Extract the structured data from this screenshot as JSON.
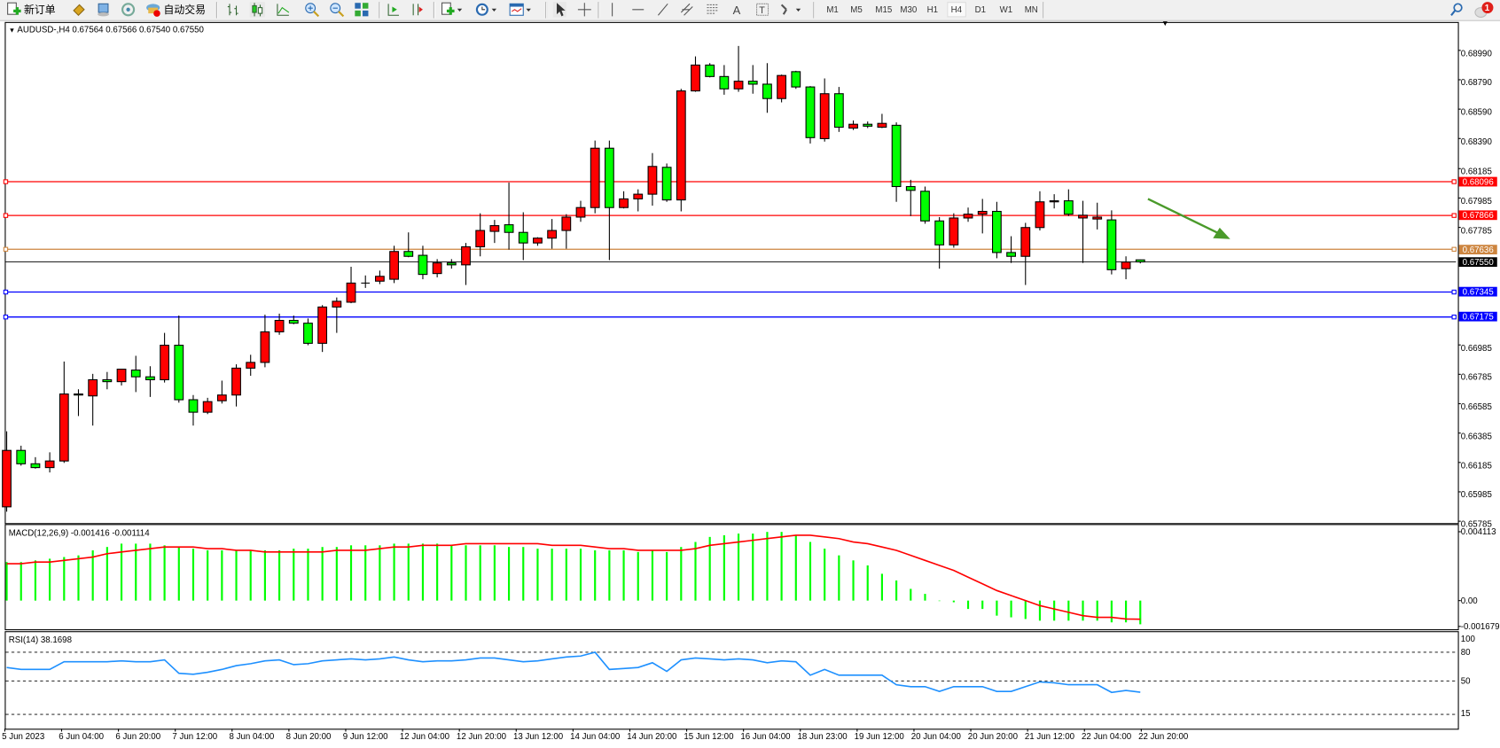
{
  "toolbar": {
    "new_order_label": "新订单",
    "auto_trading_label": "自动交易",
    "timeframes": [
      "M1",
      "M5",
      "M15",
      "M30",
      "H1",
      "H4",
      "D1",
      "W1",
      "MN"
    ],
    "active_timeframe": "H4",
    "notification_count": "1",
    "icons": [
      "new-order-icon",
      "market-watch-icon",
      "data-window-icon",
      "navigator-icon",
      "auto-trading-icon",
      "bar-chart-icon",
      "candlestick-icon",
      "line-chart-icon",
      "zoom-in-icon",
      "zoom-out-icon",
      "tile-windows-icon",
      "autoscroll-icon",
      "chart-shift-icon",
      "indicators-icon",
      "periods-icon",
      "templates-icon",
      "cursor-icon",
      "crosshair-icon",
      "vertical-line-icon",
      "horizontal-line-icon",
      "trendline-icon",
      "equidistant-channel-icon",
      "fibonacci-icon",
      "text-icon",
      "text-label-icon",
      "arrows-icon",
      "search-icon",
      "notifications-icon"
    ]
  },
  "chart": {
    "title": "AUDUSD-,H4  0.67564 0.67566 0.67540 0.67550",
    "colors": {
      "bull": "#ff0000",
      "bear": "#00ff00",
      "macd_hist": "#00ff00",
      "signal": "#ff0000",
      "rsi": "#1e90ff",
      "arrow": "#4a9a2a"
    },
    "price_ticks": [
      "0.68990",
      "0.68790",
      "0.68590",
      "0.68390",
      "0.68185",
      "0.67985",
      "0.67785",
      "0.66985",
      "0.66785",
      "0.66585",
      "0.66385",
      "0.66185",
      "0.65985",
      "0.65785"
    ],
    "levels": [
      {
        "price": "0.68096",
        "color": "#ff0000"
      },
      {
        "price": "0.67866",
        "color": "#ff0000"
      },
      {
        "price": "0.67636",
        "color": "#cd853f"
      },
      {
        "price": "0.67345",
        "color": "#0000ff"
      },
      {
        "price": "0.67175",
        "color": "#0000ff"
      }
    ],
    "current_price": "0.67550",
    "candles": [
      [
        0.65883,
        0.66397,
        0.6585,
        0.66267
      ],
      [
        0.66267,
        0.66299,
        0.66163,
        0.66176
      ],
      [
        0.66176,
        0.66221,
        0.66143,
        0.6615
      ],
      [
        0.6615,
        0.66254,
        0.66117,
        0.66195
      ],
      [
        0.66195,
        0.66872,
        0.66182,
        0.66651
      ],
      [
        0.66651,
        0.66683,
        0.66501,
        0.66644
      ],
      [
        0.66638,
        0.66788,
        0.66436,
        0.66748
      ],
      [
        0.66748,
        0.66801,
        0.66683,
        0.66735
      ],
      [
        0.66735,
        0.6682,
        0.66709,
        0.6682
      ],
      [
        0.66814,
        0.66911,
        0.66664,
        0.66768
      ],
      [
        0.66768,
        0.6684,
        0.66631,
        0.66748
      ],
      [
        0.66748,
        0.67067,
        0.66729,
        0.66983
      ],
      [
        0.66983,
        0.67185,
        0.66592,
        0.66612
      ],
      [
        0.66612,
        0.66644,
        0.66436,
        0.66527
      ],
      [
        0.66527,
        0.66625,
        0.66514,
        0.66599
      ],
      [
        0.66605,
        0.66742,
        0.66586,
        0.66644
      ],
      [
        0.66644,
        0.66853,
        0.66566,
        0.66827
      ],
      [
        0.66827,
        0.66918,
        0.66775,
        0.66866
      ],
      [
        0.66866,
        0.67191,
        0.66833,
        0.67074
      ],
      [
        0.67074,
        0.67198,
        0.67054,
        0.67152
      ],
      [
        0.67152,
        0.67185,
        0.67126,
        0.67133
      ],
      [
        0.67133,
        0.67165,
        0.66983,
        0.66996
      ],
      [
        0.66996,
        0.67256,
        0.66937,
        0.67243
      ],
      [
        0.67243,
        0.67308,
        0.67067,
        0.67282
      ],
      [
        0.67276,
        0.67517,
        0.67269,
        0.67406
      ],
      [
        0.67406,
        0.67458,
        0.67373,
        0.67406
      ],
      [
        0.67419,
        0.67491,
        0.67399,
        0.67452
      ],
      [
        0.67432,
        0.6766,
        0.67406,
        0.67621
      ],
      [
        0.67621,
        0.67751,
        0.67582,
        0.67588
      ],
      [
        0.67595,
        0.6766,
        0.67432,
        0.67465
      ],
      [
        0.67471,
        0.67569,
        0.67445,
        0.67543
      ],
      [
        0.67543,
        0.67569,
        0.67504,
        0.6753
      ],
      [
        0.6753,
        0.67679,
        0.67393,
        0.67653
      ],
      [
        0.67653,
        0.67881,
        0.67588,
        0.67764
      ],
      [
        0.67758,
        0.67836,
        0.67679,
        0.67797
      ],
      [
        0.67803,
        0.6809,
        0.67634,
        0.67751
      ],
      [
        0.67751,
        0.67888,
        0.67562,
        0.67679
      ],
      [
        0.67679,
        0.67718,
        0.6766,
        0.67712
      ],
      [
        0.67712,
        0.67842,
        0.6764,
        0.67764
      ],
      [
        0.67764,
        0.67875,
        0.6764,
        0.67855
      ],
      [
        0.67855,
        0.67966,
        0.67823,
        0.6792
      ],
      [
        0.6792,
        0.68376,
        0.67881,
        0.68324
      ],
      [
        0.68324,
        0.68376,
        0.67562,
        0.6792
      ],
      [
        0.6792,
        0.68031,
        0.67914,
        0.67979
      ],
      [
        0.67979,
        0.68044,
        0.67894,
        0.68011
      ],
      [
        0.68011,
        0.68291,
        0.67933,
        0.682
      ],
      [
        0.68194,
        0.6822,
        0.67959,
        0.67972
      ],
      [
        0.67972,
        0.68728,
        0.67894,
        0.68714
      ],
      [
        0.68714,
        0.68949,
        0.68708,
        0.6889
      ],
      [
        0.6889,
        0.68903,
        0.68806,
        0.68812
      ],
      [
        0.68812,
        0.6889,
        0.68688,
        0.68728
      ],
      [
        0.68728,
        0.6902,
        0.68708,
        0.6878
      ],
      [
        0.6878,
        0.6889,
        0.68695,
        0.6876
      ],
      [
        0.6876,
        0.68903,
        0.68565,
        0.68662
      ],
      [
        0.68662,
        0.68825,
        0.68636,
        0.68819
      ],
      [
        0.68845,
        0.68851,
        0.68728,
        0.68741
      ],
      [
        0.68741,
        0.68747,
        0.68356,
        0.68396
      ],
      [
        0.68389,
        0.68799,
        0.68369,
        0.68695
      ],
      [
        0.68695,
        0.68741,
        0.68435,
        0.68467
      ],
      [
        0.68461,
        0.68513,
        0.68448,
        0.68487
      ],
      [
        0.68487,
        0.68506,
        0.68461,
        0.68474
      ],
      [
        0.68467,
        0.68558,
        0.68461,
        0.68493
      ],
      [
        0.6848,
        0.685,
        0.67959,
        0.68063
      ],
      [
        0.68063,
        0.68109,
        0.67862,
        0.68037
      ],
      [
        0.68031,
        0.68063,
        0.6781,
        0.67829
      ],
      [
        0.67829,
        0.67855,
        0.67504,
        0.67666
      ],
      [
        0.67666,
        0.67881,
        0.67647,
        0.67849
      ],
      [
        0.67849,
        0.6792,
        0.67823,
        0.67875
      ],
      [
        0.67875,
        0.67979,
        0.67744,
        0.67894
      ],
      [
        0.67894,
        0.67959,
        0.67575,
        0.67614
      ],
      [
        0.67614,
        0.67725,
        0.67543,
        0.67588
      ],
      [
        0.67588,
        0.67816,
        0.67393,
        0.67784
      ],
      [
        0.67784,
        0.68031,
        0.67764,
        0.67959
      ],
      [
        0.67959,
        0.68011,
        0.67914,
        0.67966
      ],
      [
        0.67966,
        0.68044,
        0.67862,
        0.67875
      ],
      [
        0.67849,
        0.67966,
        0.67543,
        0.67868
      ],
      [
        0.67842,
        0.67953,
        0.67771,
        0.67855
      ],
      [
        0.67836,
        0.67901,
        0.67465,
        0.67497
      ],
      [
        0.67504,
        0.67588,
        0.67432,
        0.67549
      ],
      [
        0.67564,
        0.67566,
        0.6754,
        0.6755
      ]
    ],
    "time_labels": [
      "5 Jun 2023",
      "6 Jun 04:00",
      "6 Jun 20:00",
      "7 Jun 12:00",
      "8 Jun 04:00",
      "8 Jun 20:00",
      "9 Jun 12:00",
      "12 Jun 04:00",
      "12 Jun 20:00",
      "13 Jun 12:00",
      "14 Jun 04:00",
      "14 Jun 20:00",
      "15 Jun 12:00",
      "16 Jun 04:00",
      "18 Jun 23:00",
      "19 Jun 12:00",
      "20 Jun 04:00",
      "20 Jun 20:00",
      "21 Jun 12:00",
      "22 Jun 04:00",
      "22 Jun 20:00"
    ]
  },
  "macd": {
    "label": "MACD(12,26,9) -0.001416 -0.001114",
    "axis": {
      "max": "0.004113",
      "zero": "0.00",
      "min": "-0.001679"
    },
    "histogram": [
      0.0023,
      0.0023,
      0.0024,
      0.0025,
      0.0026,
      0.0027,
      0.003,
      0.0032,
      0.0034,
      0.0034,
      0.0034,
      0.0033,
      0.0032,
      0.0031,
      0.003,
      0.003,
      0.003,
      0.003,
      0.003,
      0.003,
      0.0031,
      0.0031,
      0.0032,
      0.0032,
      0.0033,
      0.0033,
      0.0033,
      0.0034,
      0.0034,
      0.0034,
      0.0034,
      0.0033,
      0.0033,
      0.0033,
      0.0033,
      0.0032,
      0.0032,
      0.0031,
      0.0031,
      0.0031,
      0.0031,
      0.003,
      0.003,
      0.003,
      0.0029,
      0.003,
      0.0029,
      0.0032,
      0.0035,
      0.0038,
      0.0039,
      0.004,
      0.004,
      0.0041,
      0.0041,
      0.0039,
      0.0035,
      0.0031,
      0.0027,
      0.0024,
      0.0021,
      0.0016,
      0.0012,
      0.0007,
      0.0004,
      0.0,
      -0.0001,
      -0.0005,
      -0.0005,
      -0.0009,
      -0.001,
      -0.0011,
      -0.0012,
      -0.0012,
      -0.0012,
      -0.0012,
      -0.0012,
      -0.0013,
      -0.0013,
      -0.001416
    ],
    "signal": [
      0.0022,
      0.0022,
      0.0023,
      0.0023,
      0.0024,
      0.0025,
      0.0026,
      0.0028,
      0.0029,
      0.003,
      0.0031,
      0.0032,
      0.0032,
      0.0032,
      0.0031,
      0.0031,
      0.003,
      0.003,
      0.0029,
      0.0029,
      0.0029,
      0.0029,
      0.0029,
      0.003,
      0.003,
      0.003,
      0.0031,
      0.0032,
      0.0032,
      0.0033,
      0.0033,
      0.0033,
      0.0034,
      0.0034,
      0.0034,
      0.0034,
      0.0034,
      0.0034,
      0.0033,
      0.0033,
      0.0033,
      0.0032,
      0.0031,
      0.0031,
      0.003,
      0.003,
      0.003,
      0.003,
      0.0031,
      0.0033,
      0.0034,
      0.0035,
      0.0036,
      0.0037,
      0.0038,
      0.0039,
      0.0039,
      0.0038,
      0.0037,
      0.0035,
      0.0034,
      0.0032,
      0.003,
      0.0027,
      0.0024,
      0.0021,
      0.0018,
      0.0014,
      0.001,
      0.0006,
      0.0003,
      0.0,
      -0.0003,
      -0.0005,
      -0.0007,
      -0.0009,
      -0.001,
      -0.001,
      -0.0011,
      -0.001114
    ]
  },
  "rsi": {
    "label": "RSI(14) 38.1698",
    "levels": [
      "100",
      "80",
      "50",
      "15"
    ],
    "values": [
      64,
      62,
      62,
      62,
      70,
      70,
      70,
      70,
      71,
      70,
      70,
      72,
      58,
      57,
      59,
      62,
      66,
      68,
      71,
      72,
      67,
      68,
      71,
      72,
      73,
      72,
      73,
      75,
      72,
      70,
      71,
      71,
      72,
      74,
      74,
      72,
      70,
      71,
      73,
      75,
      76,
      80,
      62,
      63,
      64,
      69,
      60,
      72,
      74,
      73,
      72,
      73,
      72,
      69,
      71,
      70,
      56,
      62,
      56,
      56,
      56,
      56,
      46,
      44,
      44,
      39,
      44,
      44,
      44,
      39,
      39,
      44,
      49,
      48,
      46,
      46,
      46,
      38,
      40,
      38.1698
    ]
  }
}
